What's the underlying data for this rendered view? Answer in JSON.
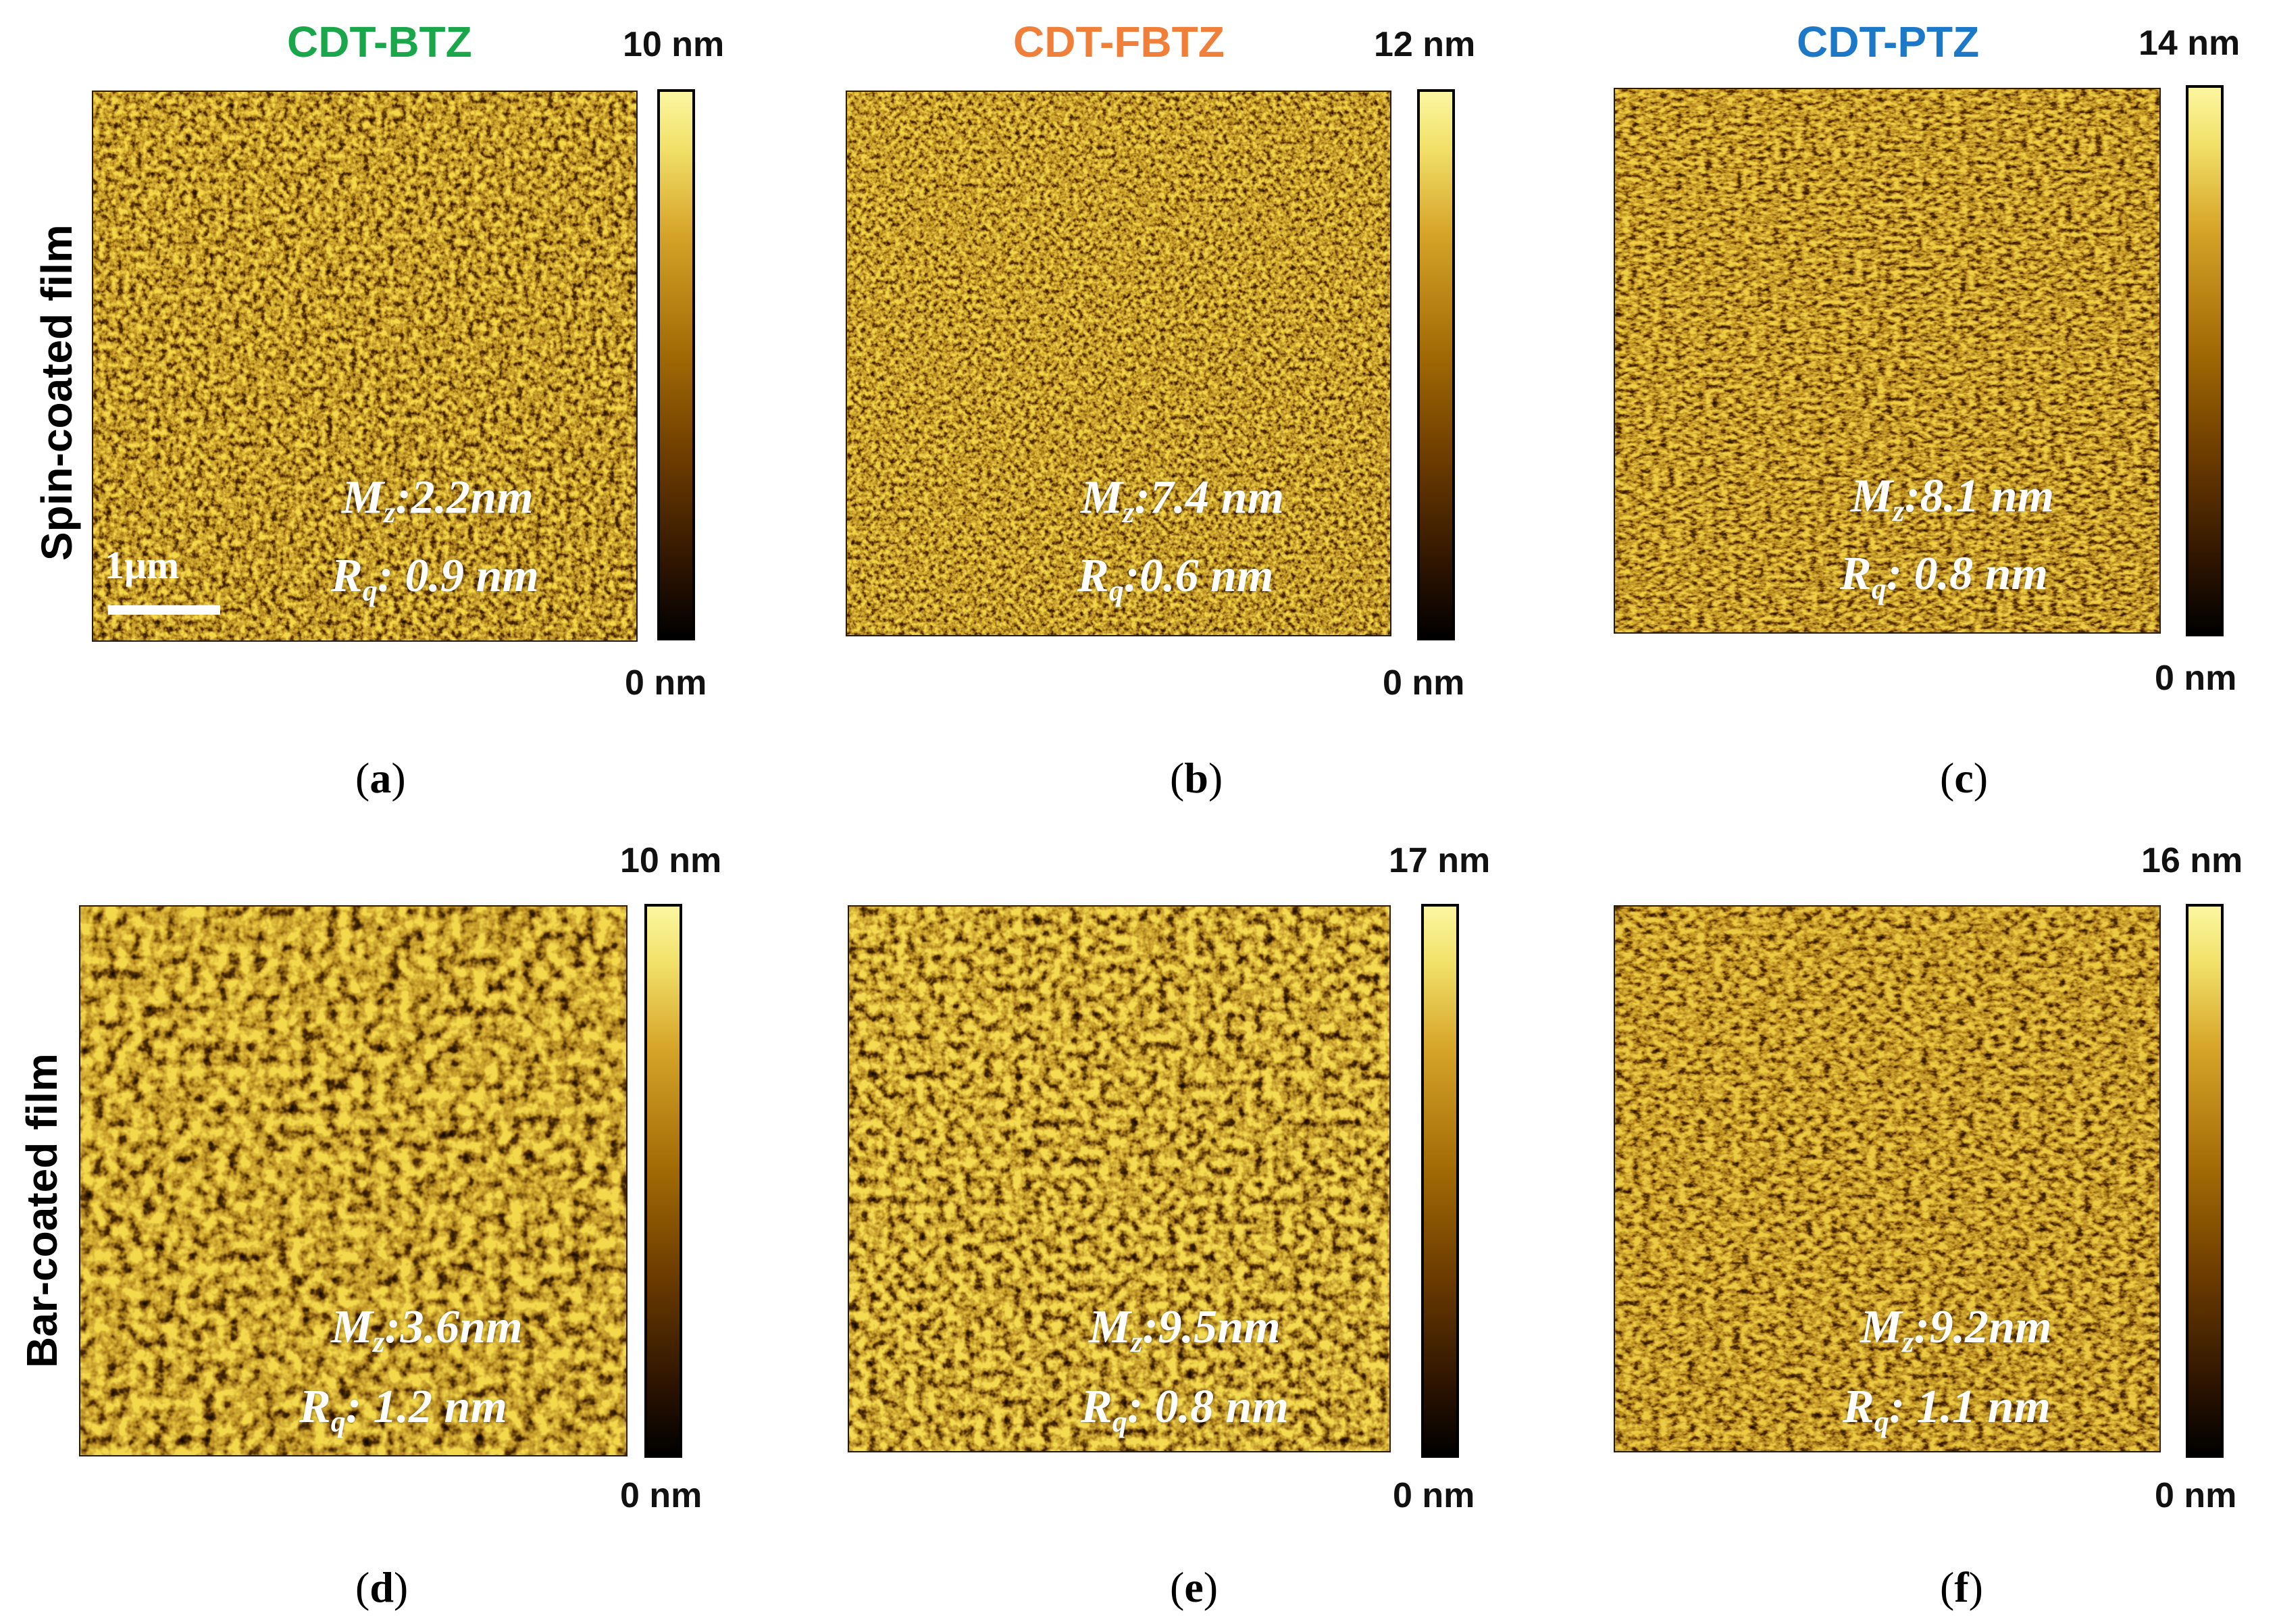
{
  "figure": {
    "columns": [
      {
        "title": "CDT-BTZ",
        "color": "#1aa64a"
      },
      {
        "title": "CDT-FBTZ",
        "color": "#f07f3a"
      },
      {
        "title": "CDT-PTZ",
        "color": "#1e78c8"
      }
    ],
    "rows": [
      {
        "label": "Spin-coated film"
      },
      {
        "label": "Bar-coated film"
      }
    ],
    "colorbar_min_label": "0 nm",
    "scale_bar_label": "1μm",
    "stat_prefix_mz": "M",
    "stat_sub_mz": "z",
    "stat_prefix_rq": "R",
    "stat_sub_rq": "q",
    "colormap": [
      "#000000",
      "#6a3a00",
      "#a26a05",
      "#d6a428",
      "#fbf6a0"
    ],
    "panels": [
      {
        "id": "a",
        "letter": "a",
        "colorbar_max": "10 nm",
        "mz": ":2.2nm",
        "rq": ": 0.9 nm"
      },
      {
        "id": "b",
        "letter": "b",
        "colorbar_max": "12 nm",
        "mz": ":7.4 nm",
        "rq": ":0.6 nm"
      },
      {
        "id": "c",
        "letter": "c",
        "colorbar_max": "14 nm",
        "mz": ":8.1 nm",
        "rq": ": 0.8 nm"
      },
      {
        "id": "d",
        "letter": "d",
        "colorbar_max": "10 nm",
        "mz": ":3.6nm",
        "rq": ": 1.2 nm"
      },
      {
        "id": "e",
        "letter": "e",
        "colorbar_max": "17 nm",
        "mz": ":9.5nm",
        "rq": ": 0.8 nm"
      },
      {
        "id": "f",
        "letter": "f",
        "colorbar_max": "16 nm",
        "mz": ":9.2nm",
        "rq": ": 1.1 nm"
      }
    ]
  }
}
